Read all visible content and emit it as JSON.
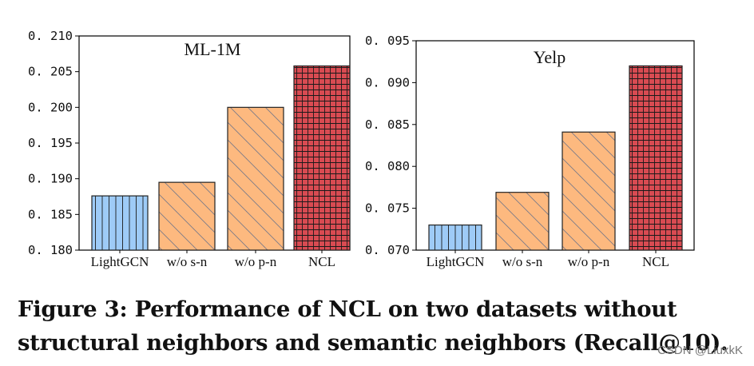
{
  "chart_data": [
    {
      "type": "bar",
      "title": "ML-1M",
      "categories": [
        "LightGCN",
        "w/o s-n",
        "w/o p-n",
        "NCL"
      ],
      "values": [
        0.1876,
        0.1895,
        0.2,
        0.2058
      ],
      "ylim": [
        0.18,
        0.21
      ],
      "yticks": [
        "0. 180",
        "0. 185",
        "0. 190",
        "0. 195",
        "0. 200",
        "0. 205",
        "0. 210"
      ],
      "ytick_values": [
        0.18,
        0.185,
        0.19,
        0.195,
        0.2,
        0.205,
        0.21
      ],
      "xlabel": "",
      "ylabel": "",
      "bar_colors": [
        "#9ecbf7",
        "#fdb97f",
        "#fdb97f",
        "#d94b52"
      ],
      "bar_hatches": [
        "vertical",
        "diagonal",
        "diagonal",
        "grid"
      ]
    },
    {
      "type": "bar",
      "title": "Yelp",
      "categories": [
        "LightGCN",
        "w/o s-n",
        "w/o p-n",
        "NCL"
      ],
      "values": [
        0.073,
        0.0769,
        0.0841,
        0.092
      ],
      "ylim": [
        0.07,
        0.095
      ],
      "yticks": [
        "0. 070",
        "0. 075",
        "0. 080",
        "0. 085",
        "0. 090",
        "0. 095"
      ],
      "ytick_values": [
        0.07,
        0.075,
        0.08,
        0.085,
        0.09,
        0.095
      ],
      "xlabel": "",
      "ylabel": "",
      "bar_colors": [
        "#9ecbf7",
        "#fdb97f",
        "#fdb97f",
        "#d94b52"
      ],
      "bar_hatches": [
        "vertical",
        "diagonal",
        "diagonal",
        "grid"
      ]
    }
  ],
  "caption": "Figure 3: Performance of NCL on two datasets without structural neighbors and semantic neighbors (Recall@10).",
  "watermark": "CSDN @LiuxkK"
}
